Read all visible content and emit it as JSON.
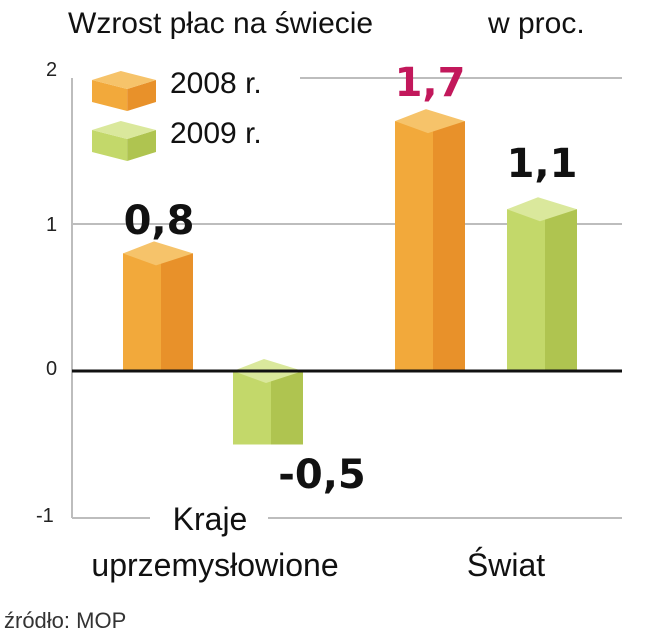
{
  "chart_data": {
    "type": "bar",
    "title": "Wzrost płac na świecie",
    "unit": "w proc.",
    "categories": [
      "Kraje uprzemysłowione",
      "Świat"
    ],
    "category_lines": [
      [
        "Kraje",
        "uprzemysłowione"
      ],
      [
        "Świat"
      ]
    ],
    "series": [
      {
        "name": "2008 r.",
        "values": [
          0.8,
          1.7
        ],
        "labels": [
          "0,8",
          "1,7"
        ]
      },
      {
        "name": "2009 r.",
        "values": [
          -0.5,
          1.1
        ],
        "labels": [
          "-0,5",
          "1,1"
        ]
      }
    ],
    "yticks": [
      "2",
      "1",
      "0",
      "-1"
    ],
    "ylim": [
      -1,
      2
    ],
    "grid": true,
    "legend": "top-left",
    "source": "źródło: MOP"
  },
  "colors": {
    "series_2008": {
      "front": "#F2A93B",
      "side": "#E8912A",
      "top": "#F6C36A"
    },
    "series_2009": {
      "front": "#C3D86A",
      "side": "#AFC450",
      "top": "#DAE89C"
    },
    "highlight_label": "#C2185B",
    "default_label": "#111111"
  }
}
